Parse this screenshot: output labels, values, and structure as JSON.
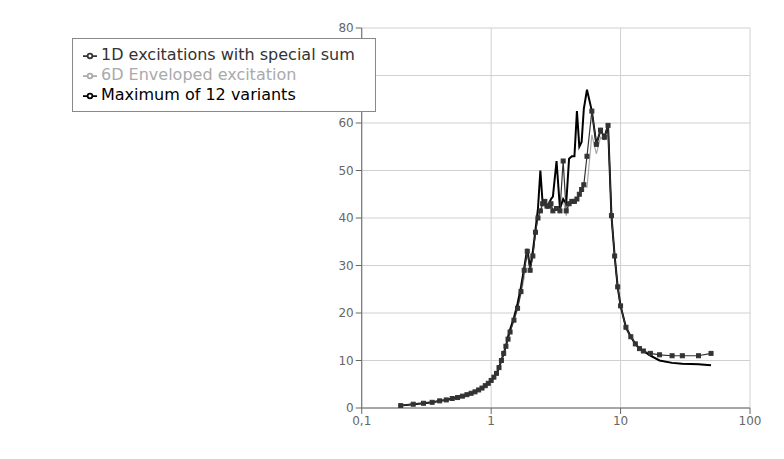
{
  "chart_data": {
    "type": "line",
    "title": "",
    "log": "x",
    "grid": true,
    "legend": "upper left",
    "xlim": [
      0.1,
      100
    ],
    "xticks": [
      {
        "value": 0.1,
        "label": "0,1"
      },
      1,
      10,
      100
    ],
    "ylim": [
      0,
      80
    ],
    "yticks": [
      0,
      10,
      20,
      30,
      40,
      50,
      60,
      70,
      80
    ],
    "x": [
      0.2,
      0.25,
      0.3,
      0.35,
      0.4,
      0.45,
      0.5,
      0.55,
      0.6,
      0.65,
      0.7,
      0.75,
      0.8,
      0.85,
      0.9,
      0.95,
      1.0,
      1.05,
      1.1,
      1.15,
      1.2,
      1.25,
      1.3,
      1.35,
      1.4,
      1.5,
      1.6,
      1.7,
      1.8,
      1.9,
      2.0,
      2.1,
      2.2,
      2.3,
      2.4,
      2.5,
      2.6,
      2.7,
      2.8,
      2.9,
      3.0,
      3.2,
      3.4,
      3.6,
      3.8,
      4.0,
      4.2,
      4.4,
      4.6,
      4.8,
      5.0,
      5.2,
      5.5,
      6.0,
      6.5,
      7.0,
      7.5,
      8.0,
      8.5,
      9.0,
      9.5,
      10.0,
      11.0,
      12.0,
      13.0,
      14.0,
      15.0,
      17.0,
      20.0,
      25.0,
      30.0,
      40.0,
      50.0
    ],
    "series": [
      {
        "name": "6D Enveloped excitation",
        "color": "#aaaaaa",
        "values": [
          0.5,
          0.8,
          1.0,
          1.2,
          1.5,
          1.7,
          2.0,
          2.2,
          2.5,
          2.8,
          3.1,
          3.4,
          3.8,
          4.2,
          4.7,
          5.2,
          5.8,
          6.5,
          7.3,
          8.5,
          10.0,
          11.5,
          13.0,
          14.5,
          16.0,
          18.5,
          21.0,
          24.0,
          27.5,
          33.0,
          29.0,
          32.0,
          37.0,
          40.0,
          41.5,
          43.0,
          43.5,
          42.0,
          42.5,
          43.0,
          41.5,
          42.0,
          41.5,
          44.0,
          40.5,
          43.0,
          43.5,
          43.5,
          44.0,
          45.0,
          46.0,
          47.0,
          46.5,
          57.5,
          53.5,
          57.0,
          56.5,
          59.0,
          40.5,
          32.0,
          25.0,
          21.5,
          16.5,
          15.0,
          13.5,
          12.5,
          12.0,
          11.0,
          10.0,
          9.5,
          9.3,
          9.2,
          9.0
        ]
      },
      {
        "name": "Maximum of 12 variants",
        "color": "#000000",
        "values": [
          0.5,
          0.8,
          1.0,
          1.2,
          1.5,
          1.7,
          2.0,
          2.2,
          2.5,
          2.8,
          3.1,
          3.4,
          3.8,
          4.2,
          4.7,
          5.2,
          5.8,
          6.5,
          7.3,
          8.5,
          10.0,
          11.5,
          13.0,
          15.0,
          16.5,
          19.0,
          22.0,
          25.5,
          29.5,
          33.5,
          29.5,
          33.0,
          37.5,
          42.0,
          50.0,
          43.0,
          43.5,
          42.5,
          43.0,
          44.0,
          44.5,
          52.0,
          42.0,
          44.0,
          43.0,
          52.5,
          53.0,
          53.0,
          62.5,
          55.0,
          56.0,
          63.0,
          67.0,
          62.5,
          55.5,
          58.5,
          57.0,
          59.5,
          40.5,
          32.0,
          25.5,
          21.5,
          17.0,
          15.0,
          13.5,
          12.5,
          12.0,
          11.0,
          10.0,
          9.5,
          9.3,
          9.2,
          9.0
        ]
      },
      {
        "name": "1D excitations with special sum",
        "color": "#333333",
        "marker": "square",
        "values": [
          0.5,
          0.8,
          1.0,
          1.2,
          1.5,
          1.7,
          2.0,
          2.2,
          2.5,
          2.8,
          3.1,
          3.4,
          3.8,
          4.2,
          4.7,
          5.2,
          5.8,
          6.5,
          7.3,
          8.5,
          10.0,
          11.5,
          13.0,
          14.5,
          16.0,
          18.5,
          21.0,
          24.5,
          29.0,
          33.0,
          29.0,
          32.0,
          37.0,
          40.0,
          41.5,
          43.0,
          43.5,
          42.5,
          42.5,
          43.0,
          41.5,
          42.0,
          41.5,
          52.0,
          41.5,
          43.0,
          43.5,
          43.5,
          44.0,
          45.0,
          46.0,
          47.0,
          53.0,
          62.5,
          55.5,
          58.5,
          57.0,
          59.5,
          40.5,
          32.0,
          25.5,
          21.5,
          17.0,
          15.0,
          13.5,
          12.5,
          12.0,
          11.5,
          11.2,
          11.0,
          11.0,
          11.0,
          11.5
        ]
      }
    ]
  }
}
